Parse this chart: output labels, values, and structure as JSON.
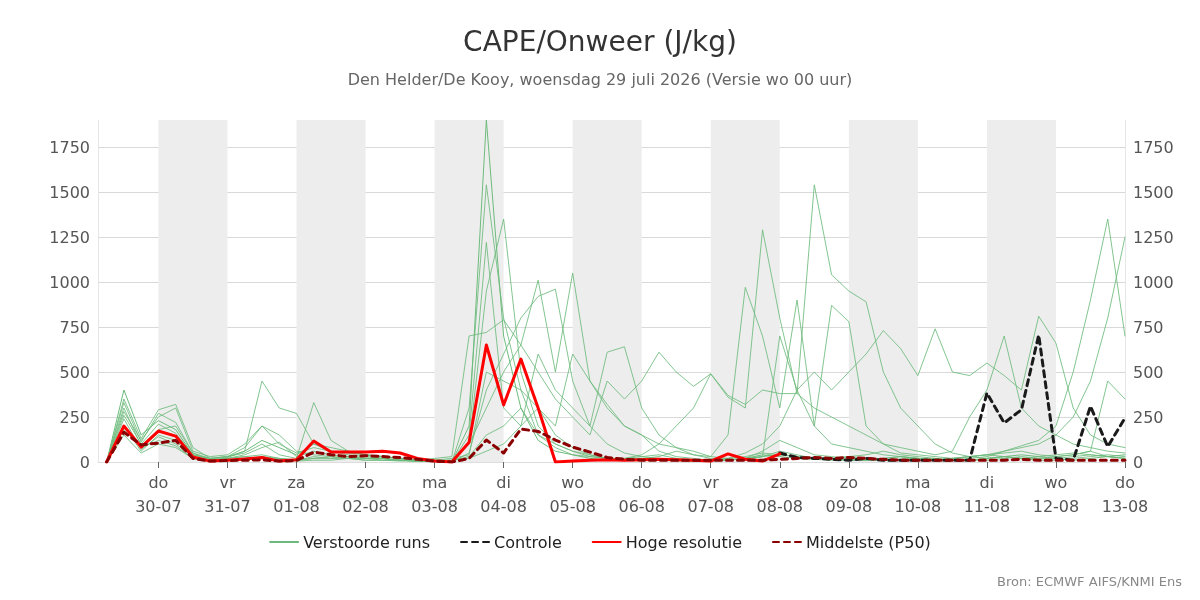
{
  "chart_data": {
    "type": "line",
    "title": "CAPE/Onweer (J/kg)",
    "subtitle": "Den Helder/De Kooy, woensdag 29 juli 2026 (Versie wo 00 uur)",
    "annotations": [
      "Bron: ECMWF AIFS/KNMI Ens"
    ],
    "x": [
      "2026-07-29T06:00",
      "2026-07-29T12:00",
      "2026-07-29T18:00",
      "2026-07-30T00:00",
      "2026-07-30T06:00",
      "2026-07-30T12:00",
      "2026-07-30T18:00",
      "2026-07-31T00:00",
      "2026-07-31T06:00",
      "2026-07-31T12:00",
      "2026-07-31T18:00",
      "2026-08-01T00:00",
      "2026-08-01T06:00",
      "2026-08-01T12:00",
      "2026-08-01T18:00",
      "2026-08-02T00:00",
      "2026-08-02T06:00",
      "2026-08-02T12:00",
      "2026-08-02T18:00",
      "2026-08-03T00:00",
      "2026-08-03T06:00",
      "2026-08-03T12:00",
      "2026-08-03T18:00",
      "2026-08-04T00:00",
      "2026-08-04T06:00",
      "2026-08-04T12:00",
      "2026-08-04T18:00",
      "2026-08-05T00:00",
      "2026-08-05T06:00",
      "2026-08-05T12:00",
      "2026-08-05T18:00",
      "2026-08-06T00:00",
      "2026-08-06T06:00",
      "2026-08-06T12:00",
      "2026-08-06T18:00",
      "2026-08-07T00:00",
      "2026-08-07T06:00",
      "2026-08-07T12:00",
      "2026-08-07T18:00",
      "2026-08-08T00:00",
      "2026-08-08T06:00",
      "2026-08-08T12:00",
      "2026-08-08T18:00",
      "2026-08-09T00:00",
      "2026-08-09T06:00",
      "2026-08-09T12:00",
      "2026-08-09T18:00",
      "2026-08-10T00:00",
      "2026-08-10T06:00",
      "2026-08-10T12:00",
      "2026-08-10T18:00",
      "2026-08-11T00:00",
      "2026-08-11T06:00",
      "2026-08-11T12:00",
      "2026-08-11T18:00",
      "2026-08-12T00:00",
      "2026-08-12T06:00",
      "2026-08-12T12:00",
      "2026-08-12T18:00",
      "2026-08-13T00:00"
    ],
    "series": [
      {
        "name": "Verstoorde runs",
        "color": "#6dbb7c",
        "line_style": "solid",
        "values": [
          0,
          400,
          150,
          230,
          180,
          40,
          20,
          30,
          60,
          120,
          80,
          40,
          100,
          60,
          50,
          40,
          30,
          20,
          10,
          5,
          0,
          200,
          1900,
          700,
          300,
          120,
          60,
          40,
          20,
          10,
          15,
          20,
          10,
          10,
          5,
          5,
          10,
          20,
          40,
          30,
          20,
          15,
          10,
          10,
          10,
          10,
          15,
          20,
          10,
          10,
          10,
          20,
          30,
          40,
          30,
          20,
          10,
          20,
          30,
          40
        ]
      },
      {
        "color": "#6dbb7c",
        "line_style": "solid",
        "values": [
          0,
          300,
          90,
          180,
          200,
          50,
          10,
          20,
          40,
          80,
          110,
          30,
          60,
          40,
          30,
          20,
          20,
          10,
          5,
          5,
          0,
          300,
          1540,
          800,
          400,
          150,
          80,
          40,
          30,
          20,
          10,
          10,
          10,
          5,
          5,
          10,
          20,
          30,
          50,
          40,
          30,
          20,
          20,
          30,
          40,
          60,
          40,
          30,
          20,
          10,
          20,
          30,
          60,
          90,
          120,
          200,
          500,
          900,
          1350,
          700
        ]
      },
      {
        "color": "#6dbb7c",
        "line_style": "solid",
        "values": [
          0,
          280,
          120,
          250,
          300,
          60,
          30,
          40,
          100,
          200,
          150,
          60,
          40,
          30,
          20,
          20,
          10,
          10,
          5,
          0,
          0,
          100,
          950,
          1350,
          500,
          200,
          100,
          60,
          30,
          20,
          20,
          30,
          40,
          20,
          10,
          10,
          10,
          20,
          60,
          120,
          80,
          40,
          30,
          20,
          10,
          20,
          30,
          20,
          10,
          20,
          30,
          40,
          60,
          80,
          100,
          150,
          250,
          450,
          800,
          1250
        ]
      },
      {
        "color": "#6dbb7c",
        "line_style": "solid",
        "values": [
          0,
          200,
          60,
          150,
          120,
          20,
          10,
          20,
          30,
          40,
          20,
          10,
          20,
          30,
          20,
          10,
          10,
          10,
          10,
          20,
          30,
          700,
          720,
          790,
          650,
          1010,
          500,
          1050,
          450,
          300,
          200,
          150,
          60,
          30,
          20,
          10,
          10,
          20,
          30,
          40,
          30,
          20,
          20,
          30,
          20,
          10,
          10,
          20,
          20,
          10,
          10,
          20,
          30,
          20,
          10,
          10,
          20,
          30,
          40,
          30
        ]
      },
      {
        "color": "#6dbb7c",
        "line_style": "solid",
        "values": [
          0,
          350,
          130,
          290,
          320,
          80,
          20,
          30,
          50,
          100,
          40,
          20,
          330,
          120,
          60,
          40,
          30,
          20,
          10,
          10,
          0,
          50,
          400,
          600,
          800,
          920,
          960,
          450,
          200,
          610,
          640,
          300,
          150,
          80,
          40,
          20,
          10,
          20,
          30,
          60,
          40,
          20,
          20,
          10,
          10,
          20,
          30,
          20,
          10,
          20,
          10,
          10,
          20,
          30,
          20,
          20,
          30,
          40,
          30,
          20
        ]
      },
      {
        "color": "#6dbb7c",
        "line_style": "solid",
        "values": [
          0,
          240,
          70,
          140,
          100,
          30,
          10,
          10,
          20,
          30,
          20,
          10,
          30,
          20,
          20,
          30,
          20,
          10,
          10,
          10,
          10,
          30,
          150,
          200,
          300,
          150,
          100,
          60,
          40,
          20,
          20,
          40,
          100,
          200,
          300,
          490,
          360,
          300,
          1290,
          800,
          380,
          1540,
          1040,
          950,
          890,
          500,
          300,
          200,
          100,
          50,
          30,
          20,
          30,
          20,
          20,
          30,
          40,
          60,
          30,
          20
        ]
      },
      {
        "color": "#6dbb7c",
        "line_style": "solid",
        "values": [
          0,
          180,
          80,
          120,
          90,
          20,
          10,
          20,
          30,
          20,
          20,
          10,
          20,
          20,
          30,
          20,
          20,
          10,
          5,
          10,
          20,
          40,
          500,
          450,
          400,
          300,
          200,
          600,
          450,
          320,
          200,
          150,
          100,
          80,
          60,
          30,
          150,
          970,
          700,
          300,
          900,
          200,
          870,
          780,
          200,
          100,
          50,
          40,
          30,
          20,
          30,
          40,
          30,
          20,
          30,
          40,
          50,
          40,
          30,
          20
        ]
      },
      {
        "color": "#6dbb7c",
        "line_style": "solid",
        "values": [
          0,
          150,
          50,
          100,
          80,
          20,
          5,
          10,
          10,
          20,
          10,
          5,
          10,
          10,
          20,
          10,
          10,
          5,
          5,
          5,
          10,
          20,
          60,
          100,
          200,
          300,
          150,
          80,
          40,
          20,
          10,
          20,
          30,
          60,
          40,
          30,
          20,
          50,
          100,
          200,
          400,
          500,
          400,
          500,
          600,
          730,
          630,
          480,
          740,
          500,
          480,
          550,
          480,
          400,
          810,
          660,
          300,
          150,
          100,
          80
        ]
      },
      {
        "color": "#6dbb7c",
        "line_style": "solid",
        "values": [
          0,
          260,
          100,
          210,
          160,
          40,
          15,
          25,
          60,
          450,
          300,
          270,
          100,
          80,
          60,
          40,
          30,
          20,
          10,
          10,
          0,
          100,
          300,
          500,
          650,
          500,
          350,
          250,
          150,
          450,
          350,
          450,
          610,
          500,
          420,
          490,
          370,
          320,
          400,
          380,
          380,
          300,
          250,
          200,
          150,
          100,
          80,
          60,
          40,
          60,
          250,
          400,
          700,
          300,
          200,
          150,
          100,
          80,
          60,
          50
        ]
      },
      {
        "color": "#6dbb7c",
        "line_style": "solid",
        "values": [
          0,
          330,
          110,
          270,
          220,
          50,
          20,
          30,
          80,
          200,
          100,
          50,
          80,
          60,
          40,
          30,
          20,
          10,
          5,
          5,
          0,
          150,
          1220,
          300,
          200,
          600,
          400,
          300,
          200,
          100,
          50,
          30,
          20,
          10,
          10,
          10,
          20,
          10,
          30,
          700,
          400,
          200,
          100,
          80,
          60,
          40,
          30,
          20,
          10,
          20,
          30,
          40,
          50,
          60,
          40,
          30,
          40,
          60,
          450,
          350
        ]
      },
      {
        "name": "Controle",
        "color": "#1a1a1a",
        "line_style": "dashed",
        "values": [
          null,
          null,
          null,
          null,
          null,
          null,
          null,
          null,
          null,
          null,
          null,
          null,
          null,
          null,
          null,
          null,
          null,
          null,
          null,
          null,
          null,
          null,
          null,
          null,
          null,
          null,
          null,
          null,
          null,
          null,
          null,
          null,
          null,
          null,
          null,
          null,
          null,
          null,
          null,
          50,
          25,
          20,
          15,
          10,
          20,
          10,
          10,
          10,
          10,
          10,
          10,
          383,
          217,
          290,
          705,
          20,
          10,
          310,
          85,
          245
        ]
      },
      {
        "name": "Hoge resolutie",
        "color": "#ff0000",
        "line_style": "solid",
        "values": [
          0,
          200,
          83,
          172,
          144,
          28,
          5,
          10,
          17,
          25,
          5,
          12,
          117,
          55,
          55,
          55,
          60,
          50,
          20,
          5,
          0,
          110,
          650,
          317,
          572,
          300,
          0,
          5,
          10,
          12,
          10,
          12,
          15,
          12,
          10,
          5,
          45,
          15,
          5,
          45,
          null,
          null,
          null,
          null,
          null,
          null,
          null,
          null,
          null,
          null,
          null,
          null,
          null,
          null,
          null,
          null,
          null,
          null,
          null,
          null
        ]
      },
      {
        "name": "Middelste (P50)",
        "color": "#8b0000",
        "line_style": "dashed",
        "values": [
          0,
          165,
          95,
          105,
          120,
          20,
          5,
          8,
          10,
          12,
          5,
          8,
          55,
          40,
          30,
          35,
          30,
          25,
          15,
          5,
          0,
          20,
          122,
          50,
          183,
          170,
          122,
          83,
          55,
          25,
          15,
          10,
          10,
          10,
          10,
          10,
          10,
          10,
          10,
          15,
          20,
          25,
          20,
          25,
          20,
          15,
          10,
          10,
          10,
          10,
          10,
          10,
          10,
          15,
          10,
          10,
          10,
          10,
          10,
          10
        ]
      }
    ],
    "xlim": [
      "2026-07-29T03:00",
      "2026-08-13T00:00"
    ],
    "xticks": [
      {
        "value": "2026-07-30",
        "label": "do\n30-07"
      },
      {
        "value": "2026-07-31",
        "label": "vr\n31-07"
      },
      {
        "value": "2026-08-01",
        "label": "za\n01-08"
      },
      {
        "value": "2026-08-02",
        "label": "zo\n02-08"
      },
      {
        "value": "2026-08-03",
        "label": "ma\n03-08"
      },
      {
        "value": "2026-08-04",
        "label": "di\n04-08"
      },
      {
        "value": "2026-08-05",
        "label": "wo\n05-08"
      },
      {
        "value": "2026-08-06",
        "label": "do\n06-08"
      },
      {
        "value": "2026-08-07",
        "label": "vr\n07-08"
      },
      {
        "value": "2026-08-08",
        "label": "za\n08-08"
      },
      {
        "value": "2026-08-09",
        "label": "zo\n09-08"
      },
      {
        "value": "2026-08-10",
        "label": "ma\n10-08"
      },
      {
        "value": "2026-08-11",
        "label": "di\n11-08"
      },
      {
        "value": "2026-08-12",
        "label": "wo\n12-08"
      },
      {
        "value": "2026-08-13",
        "label": "do\n13-08"
      }
    ],
    "ylim": [
      0,
      1900
    ],
    "yticks": [
      0,
      250,
      500,
      750,
      1000,
      1250,
      1500,
      1750
    ],
    "y2lim": [
      0,
      1900
    ],
    "y2ticks": [
      0,
      250,
      500,
      750,
      1000,
      1250,
      1500,
      1750
    ],
    "bands": [
      {
        "axis": "x",
        "from": "2026-07-30",
        "to": "2026-07-31",
        "color": "#ededed"
      },
      {
        "axis": "x",
        "from": "2026-08-01",
        "to": "2026-08-02",
        "color": "#ededed"
      },
      {
        "axis": "x",
        "from": "2026-08-03",
        "to": "2026-08-04",
        "color": "#ededed"
      },
      {
        "axis": "x",
        "from": "2026-08-05",
        "to": "2026-08-06",
        "color": "#ededed"
      },
      {
        "axis": "x",
        "from": "2026-08-07",
        "to": "2026-08-08",
        "color": "#ededed"
      },
      {
        "axis": "x",
        "from": "2026-08-09",
        "to": "2026-08-10",
        "color": "#ededed"
      },
      {
        "axis": "x",
        "from": "2026-08-11",
        "to": "2026-08-12",
        "color": "#ededed"
      }
    ],
    "grid": "y",
    "legend": "bottom",
    "marker": "none"
  }
}
